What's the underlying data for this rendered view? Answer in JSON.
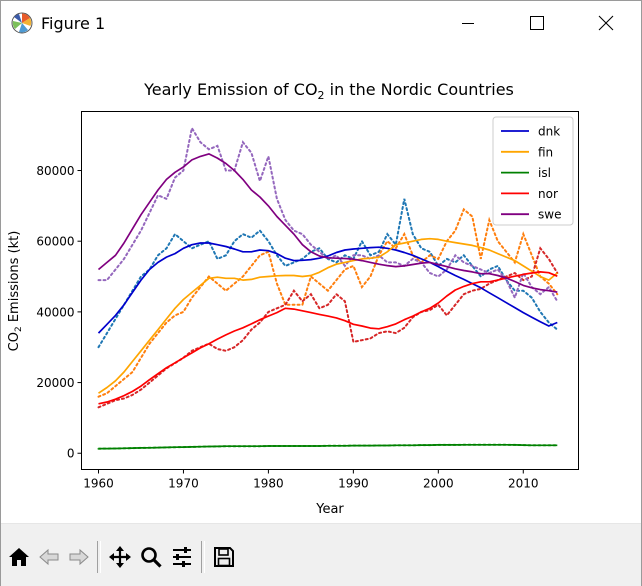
{
  "window": {
    "title": "Figure 1",
    "controls": [
      "minimize-icon",
      "maximize-icon",
      "close-icon"
    ]
  },
  "toolbar": {
    "buttons": [
      "home-icon",
      "back-icon",
      "forward-icon",
      "pan-icon",
      "zoom-icon",
      "configure-subplots-icon",
      "save-icon"
    ]
  },
  "chart_data": {
    "type": "line",
    "title_main": "Yearly Emission of CO",
    "title_sub": "2",
    "title_rest": " in the Nordic Countries",
    "xlabel": "Year",
    "ylabel_main": "CO",
    "ylabel_sub": "2",
    "ylabel_rest": " Emissions (kt)",
    "xlim": [
      1958,
      2016.5
    ],
    "ylim": [
      -4600,
      96700
    ],
    "xticks": [
      1960,
      1970,
      1980,
      1990,
      2000,
      2010
    ],
    "yticks": [
      0,
      20000,
      40000,
      60000,
      80000
    ],
    "ytick_labels": [
      "0",
      "20000",
      "40000",
      "60000",
      "80000"
    ],
    "legend_position": "top-right",
    "legend": [
      {
        "label": "dnk",
        "color": "#0000cc"
      },
      {
        "label": "fin",
        "color": "#ffa500"
      },
      {
        "label": "isl",
        "color": "#008000"
      },
      {
        "label": "nor",
        "color": "#ff0000"
      },
      {
        "label": "swe",
        "color": "#800080"
      }
    ],
    "x": [
      1960,
      1961,
      1962,
      1963,
      1964,
      1965,
      1966,
      1967,
      1968,
      1969,
      1970,
      1971,
      1972,
      1973,
      1974,
      1975,
      1976,
      1977,
      1978,
      1979,
      1980,
      1981,
      1982,
      1983,
      1984,
      1985,
      1986,
      1987,
      1988,
      1989,
      1990,
      1991,
      1992,
      1993,
      1994,
      1995,
      1996,
      1997,
      1998,
      1999,
      2000,
      2001,
      2002,
      2003,
      2004,
      2005,
      2006,
      2007,
      2008,
      2009,
      2010,
      2011,
      2012,
      2013,
      2014
    ],
    "series": [
      {
        "name": "dnk",
        "smooth_color": "#0000cc",
        "raw_color": "#1f77b4",
        "smooth": [
          34000,
          36500,
          39000,
          42000,
          45500,
          49000,
          52000,
          54000,
          55500,
          56500,
          58000,
          59000,
          59500,
          59500,
          59000,
          58500,
          57800,
          57000,
          57000,
          57500,
          57300,
          56500,
          55200,
          54500,
          54600,
          54800,
          55200,
          55800,
          56800,
          57500,
          57800,
          58000,
          58200,
          58300,
          58000,
          57500,
          56800,
          56000,
          55000,
          54000,
          52800,
          51500,
          50300,
          49200,
          48000,
          46800,
          45400,
          44000,
          42600,
          41200,
          39800,
          38500,
          37200,
          36000,
          37000
        ],
        "raw": [
          30000,
          34000,
          38000,
          42000,
          46000,
          50000,
          52000,
          56000,
          58000,
          62000,
          60000,
          58000,
          59000,
          60000,
          55000,
          56000,
          60000,
          62000,
          61000,
          63000,
          60000,
          56000,
          53000,
          54000,
          55000,
          57000,
          58000,
          55000,
          54000,
          56000,
          55000,
          60000,
          56000,
          57000,
          62000,
          59000,
          72000,
          62000,
          58000,
          57000,
          53000,
          55000,
          54000,
          56000,
          53000,
          50000,
          52000,
          53000,
          49000,
          46000,
          46000,
          44000,
          40000,
          37000,
          35000
        ]
      },
      {
        "name": "fin",
        "smooth_color": "#ffa500",
        "raw_color": "#ff7f0e",
        "smooth": [
          17000,
          18600,
          20500,
          23000,
          26000,
          29000,
          32000,
          35000,
          38000,
          41000,
          43500,
          45500,
          47500,
          49500,
          49800,
          49500,
          49500,
          49000,
          49200,
          49800,
          50000,
          50200,
          50300,
          50300,
          50000,
          50300,
          51200,
          52500,
          53500,
          54000,
          54500,
          55000,
          55200,
          55500,
          57000,
          59000,
          59500,
          60000,
          60500,
          60700,
          60500,
          60000,
          59600,
          59200,
          58800,
          58200,
          57500,
          56500,
          55500,
          54500,
          53000,
          51500,
          50000,
          49000,
          51000
        ],
        "raw": [
          16000,
          17000,
          19000,
          21000,
          23000,
          27000,
          31000,
          34000,
          37000,
          39000,
          40000,
          44000,
          47000,
          50000,
          48000,
          46000,
          48000,
          50000,
          53000,
          56000,
          57000,
          48000,
          42000,
          42000,
          42000,
          50000,
          48000,
          46000,
          49000,
          52000,
          53000,
          47000,
          50000,
          56000,
          60000,
          58000,
          62000,
          56000,
          54000,
          56000,
          55000,
          60000,
          63000,
          69000,
          67000,
          55000,
          66000,
          60000,
          57000,
          54000,
          62000,
          56000,
          50000,
          48000,
          45000
        ]
      },
      {
        "name": "isl",
        "smooth_color": "#008000",
        "raw_color": "#2ca02c",
        "smooth": [
          1300,
          1300,
          1350,
          1400,
          1450,
          1500,
          1550,
          1600,
          1650,
          1700,
          1750,
          1800,
          1850,
          1900,
          1950,
          2000,
          2000,
          2000,
          2000,
          2000,
          2050,
          2050,
          2050,
          2050,
          2050,
          2050,
          2050,
          2100,
          2100,
          2100,
          2150,
          2150,
          2150,
          2200,
          2200,
          2250,
          2250,
          2250,
          2300,
          2300,
          2350,
          2350,
          2350,
          2400,
          2400,
          2400,
          2400,
          2400,
          2400,
          2350,
          2300,
          2250,
          2250,
          2250,
          2250
        ],
        "raw": [
          1250,
          1300,
          1350,
          1400,
          1450,
          1500,
          1550,
          1600,
          1650,
          1700,
          1750,
          1800,
          1850,
          1900,
          1950,
          2000,
          2000,
          2000,
          2000,
          2000,
          2050,
          2050,
          2050,
          2050,
          2050,
          2050,
          2050,
          2100,
          2100,
          2100,
          2150,
          2150,
          2150,
          2200,
          2200,
          2250,
          2250,
          2250,
          2300,
          2300,
          2350,
          2350,
          2350,
          2400,
          2400,
          2400,
          2400,
          2400,
          2400,
          2350,
          2300,
          2250,
          2250,
          2250,
          2250
        ]
      },
      {
        "name": "nor",
        "smooth_color": "#ff0000",
        "raw_color": "#d62728",
        "smooth": [
          14000,
          14500,
          15300,
          16300,
          17500,
          19000,
          20800,
          22500,
          24200,
          25600,
          27000,
          28400,
          29800,
          31000,
          32300,
          33500,
          34600,
          35500,
          36600,
          37800,
          38800,
          39800,
          41000,
          40800,
          40300,
          39800,
          39300,
          38800,
          38300,
          37500,
          36500,
          36000,
          35400,
          35200,
          35800,
          36600,
          37800,
          38800,
          40000,
          41000,
          42500,
          44500,
          46200,
          47200,
          48000,
          48500,
          48500,
          49000,
          49600,
          50100,
          50600,
          51000,
          51300,
          51100,
          50100
        ],
        "raw": [
          13000,
          14000,
          15000,
          15500,
          16500,
          18000,
          20000,
          22000,
          24000,
          25500,
          27000,
          29000,
          30000,
          31000,
          29500,
          29000,
          30000,
          32000,
          35000,
          37000,
          40000,
          41000,
          42000,
          46000,
          43000,
          45000,
          41000,
          42000,
          45000,
          43000,
          31500,
          32000,
          32500,
          34000,
          34500,
          34000,
          35500,
          38500,
          40000,
          40500,
          42000,
          39000,
          42000,
          45000,
          46000,
          46500,
          48000,
          49000,
          50000,
          51000,
          49000,
          50000,
          58000,
          55000,
          51000
        ]
      },
      {
        "name": "swe",
        "smooth_color": "#800080",
        "raw_color": "#9467bd",
        "smooth": [
          52000,
          54000,
          56000,
          59500,
          63500,
          67500,
          71000,
          74500,
          77500,
          79500,
          81000,
          83000,
          84000,
          84700,
          83500,
          82000,
          80000,
          77500,
          74500,
          72500,
          70000,
          67000,
          64500,
          62000,
          59000,
          57000,
          55800,
          55300,
          55200,
          55100,
          54900,
          54500,
          54000,
          53500,
          53100,
          52800,
          53000,
          53400,
          53800,
          54000,
          53400,
          52800,
          52200,
          51700,
          51300,
          50800,
          50800,
          50300,
          49600,
          48600,
          47500,
          46800,
          46300,
          46000,
          45600
        ],
        "raw": [
          49000,
          49000,
          52000,
          55000,
          59000,
          63000,
          68000,
          73000,
          72000,
          78000,
          80000,
          92000,
          88000,
          86000,
          87000,
          80000,
          80000,
          88000,
          85000,
          77000,
          84000,
          72000,
          66000,
          63000,
          62000,
          59000,
          57000,
          55000,
          56000,
          53000,
          56000,
          56000,
          55000,
          56000,
          54000,
          54000,
          53000,
          55000,
          54000,
          51000,
          50000,
          52000,
          56000,
          54000,
          53000,
          52000,
          51000,
          52000,
          49000,
          44000,
          51000,
          47000,
          45000,
          47000,
          43000
        ]
      }
    ]
  }
}
